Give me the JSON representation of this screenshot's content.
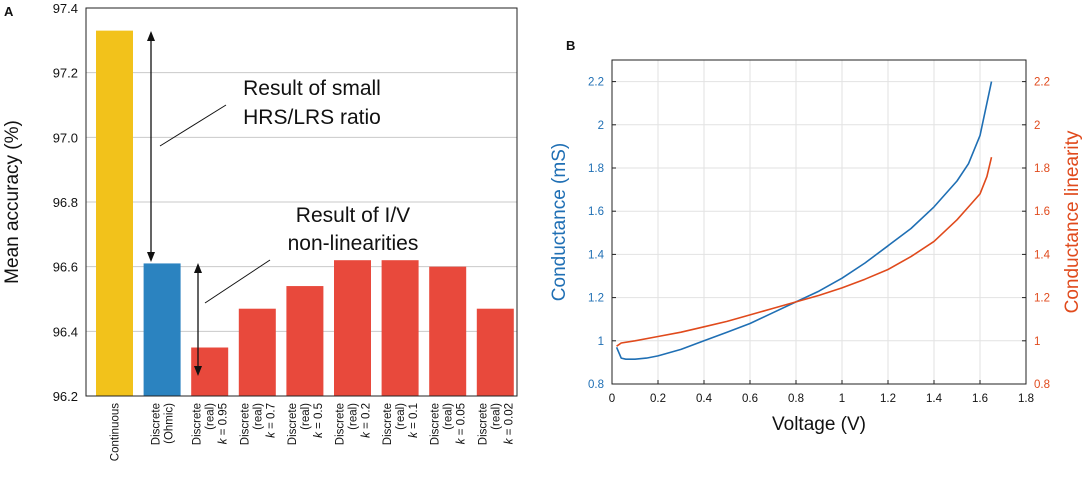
{
  "chart_data": [
    {
      "panel_label": "A",
      "type": "bar",
      "title": "",
      "xlabel": "",
      "ylabel": "Mean accuracy (%)",
      "ylim": [
        96.2,
        97.4
      ],
      "yticks": [
        "96.2",
        "96.4",
        "96.6",
        "96.8",
        "97.0",
        "97.2",
        "97.4"
      ],
      "grid": true,
      "categories": [
        [
          "Continuous"
        ],
        [
          "Discrete",
          "(Ohmic)"
        ],
        [
          "Discrete",
          "(real)",
          "k = 0.95"
        ],
        [
          "Discrete",
          "(real)",
          "k = 0.7"
        ],
        [
          "Discrete",
          "(real)",
          "k = 0.5"
        ],
        [
          "Discrete",
          "(real)",
          "k = 0.2"
        ],
        [
          "Discrete",
          "(real)",
          "k = 0.1"
        ],
        [
          "Discrete",
          "(real)",
          "k = 0.05"
        ],
        [
          "Discrete",
          "(real)",
          "k = 0.02"
        ]
      ],
      "values": [
        97.33,
        96.61,
        96.35,
        96.47,
        96.54,
        96.62,
        96.62,
        96.6,
        96.47
      ],
      "bar_colors": [
        "#f2c21b",
        "#2b83c0",
        "#e8493c",
        "#e8493c",
        "#e8493c",
        "#e8493c",
        "#e8493c",
        "#e8493c",
        "#e8493c"
      ],
      "annotations": [
        {
          "lines": [
            "Result of small",
            "HRS/LRS ratio"
          ],
          "arrow_between": [
            97.33,
            96.61
          ]
        },
        {
          "lines": [
            "Result of I/V",
            "non-linearities"
          ],
          "arrow_between": [
            96.61,
            96.35
          ]
        }
      ]
    },
    {
      "panel_label": "B",
      "type": "line",
      "title": "",
      "xlabel": "Voltage (V)",
      "ylabel_left": "Conductance (mS)",
      "ylabel_right": "Conductance linearity",
      "xlim": [
        0,
        1.8
      ],
      "ylim_left": [
        0.8,
        2.3
      ],
      "ylim_right": [
        0.8,
        2.3
      ],
      "xticks": [
        "0",
        "0.2",
        "0.4",
        "0.6",
        "0.8",
        "1",
        "1.2",
        "1.4",
        "1.6",
        "1.8"
      ],
      "yticks_left": [
        "0.8",
        "1",
        "1.2",
        "1.4",
        "1.6",
        "1.8",
        "2",
        "2.2"
      ],
      "yticks_right": [
        "0.8",
        "1",
        "1.2",
        "1.4",
        "1.6",
        "1.8",
        "2",
        "2.2"
      ],
      "grid": true,
      "series": [
        {
          "name": "Conductance (mS)",
          "axis": "left",
          "color": "#1f6fb4",
          "x": [
            0.02,
            0.04,
            0.06,
            0.1,
            0.15,
            0.2,
            0.3,
            0.4,
            0.5,
            0.6,
            0.7,
            0.8,
            0.9,
            1.0,
            1.1,
            1.2,
            1.3,
            1.4,
            1.5,
            1.55,
            1.6,
            1.65
          ],
          "y": [
            0.97,
            0.92,
            0.915,
            0.915,
            0.92,
            0.93,
            0.96,
            1.0,
            1.04,
            1.08,
            1.13,
            1.18,
            1.23,
            1.29,
            1.36,
            1.44,
            1.52,
            1.62,
            1.74,
            1.82,
            1.95,
            2.2
          ]
        },
        {
          "name": "Conductance linearity",
          "axis": "right",
          "color": "#e04a1c",
          "x": [
            0.02,
            0.04,
            0.1,
            0.2,
            0.3,
            0.4,
            0.5,
            0.6,
            0.7,
            0.8,
            0.9,
            1.0,
            1.1,
            1.2,
            1.3,
            1.4,
            1.5,
            1.55,
            1.6,
            1.63,
            1.65
          ],
          "y": [
            0.975,
            0.99,
            1.0,
            1.02,
            1.04,
            1.065,
            1.09,
            1.12,
            1.15,
            1.18,
            1.21,
            1.245,
            1.285,
            1.33,
            1.39,
            1.46,
            1.56,
            1.62,
            1.68,
            1.76,
            1.85
          ]
        }
      ]
    }
  ]
}
